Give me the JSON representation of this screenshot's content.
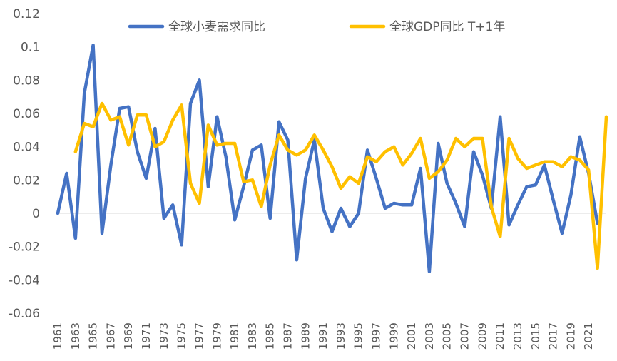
{
  "chart_data": {
    "type": "line",
    "title": "",
    "xlabel": "",
    "ylabel": "",
    "ylim": [
      -0.06,
      0.12
    ],
    "y_ticks": [
      -0.06,
      -0.04,
      -0.02,
      0,
      0.02,
      0.04,
      0.06,
      0.08,
      0.1,
      0.12
    ],
    "y_tick_labels": [
      "-0.06",
      "-0.04",
      "-0.02",
      "0",
      "0.02",
      "0.04",
      "0.06",
      "0.08",
      "0.1",
      "0.12"
    ],
    "x": [
      1961,
      1962,
      1963,
      1964,
      1965,
      1966,
      1967,
      1968,
      1969,
      1970,
      1971,
      1972,
      1973,
      1974,
      1975,
      1976,
      1977,
      1978,
      1979,
      1980,
      1981,
      1982,
      1983,
      1984,
      1985,
      1986,
      1987,
      1988,
      1989,
      1990,
      1991,
      1992,
      1993,
      1994,
      1995,
      1996,
      1997,
      1998,
      1999,
      2000,
      2001,
      2002,
      2003,
      2004,
      2005,
      2006,
      2007,
      2008,
      2009,
      2010,
      2011,
      2012,
      2013,
      2014,
      2015,
      2016,
      2017,
      2018,
      2019,
      2020,
      2021,
      2022,
      2023
    ],
    "x_tick_labels": [
      "1961",
      "1963",
      "1965",
      "1967",
      "1969",
      "1971",
      "1973",
      "1975",
      "1977",
      "1979",
      "1981",
      "1983",
      "1985",
      "1987",
      "1989",
      "1991",
      "1993",
      "1995",
      "1997",
      "1999",
      "2001",
      "2003",
      "2005",
      "2007",
      "2009",
      "2011",
      "2013",
      "2015",
      "2017",
      "2019",
      "2021"
    ],
    "grid": false,
    "legend_position": "top",
    "series": [
      {
        "name": "全球小麦需求同比",
        "color": "#4472C4",
        "values": [
          0.0,
          0.024,
          -0.015,
          0.072,
          0.101,
          -0.012,
          0.029,
          0.063,
          0.064,
          0.037,
          0.021,
          0.051,
          -0.003,
          0.005,
          -0.019,
          0.066,
          0.08,
          0.016,
          0.058,
          0.034,
          -0.004,
          0.016,
          0.038,
          0.041,
          -0.003,
          0.055,
          0.044,
          -0.028,
          0.021,
          0.044,
          0.003,
          -0.011,
          0.003,
          -0.008,
          0.0,
          0.038,
          0.021,
          0.003,
          0.006,
          0.005,
          0.005,
          0.027,
          -0.035,
          0.042,
          0.018,
          0.006,
          -0.008,
          0.037,
          0.023,
          0.003,
          0.058,
          -0.007,
          0.005,
          0.016,
          0.017,
          0.029,
          0.008,
          -0.012,
          0.011,
          0.046,
          0.024,
          -0.006,
          null
        ]
      },
      {
        "name": "全球GDP同比 T+1年",
        "color": "#FFC000",
        "values": [
          null,
          null,
          0.037,
          0.054,
          0.052,
          0.066,
          0.056,
          0.058,
          0.041,
          0.059,
          0.059,
          0.04,
          0.043,
          0.056,
          0.065,
          0.018,
          0.006,
          0.053,
          0.041,
          0.042,
          0.042,
          0.019,
          0.02,
          0.004,
          0.029,
          0.047,
          0.038,
          0.035,
          0.038,
          0.047,
          0.038,
          0.028,
          0.015,
          0.022,
          0.018,
          0.034,
          0.031,
          0.037,
          0.04,
          0.029,
          0.036,
          0.045,
          0.021,
          0.025,
          0.032,
          0.045,
          0.04,
          0.045,
          0.045,
          0.004,
          -0.014,
          0.045,
          0.033,
          0.027,
          0.029,
          0.031,
          0.031,
          0.028,
          0.034,
          0.032,
          0.026,
          -0.033,
          0.058
        ]
      }
    ]
  }
}
